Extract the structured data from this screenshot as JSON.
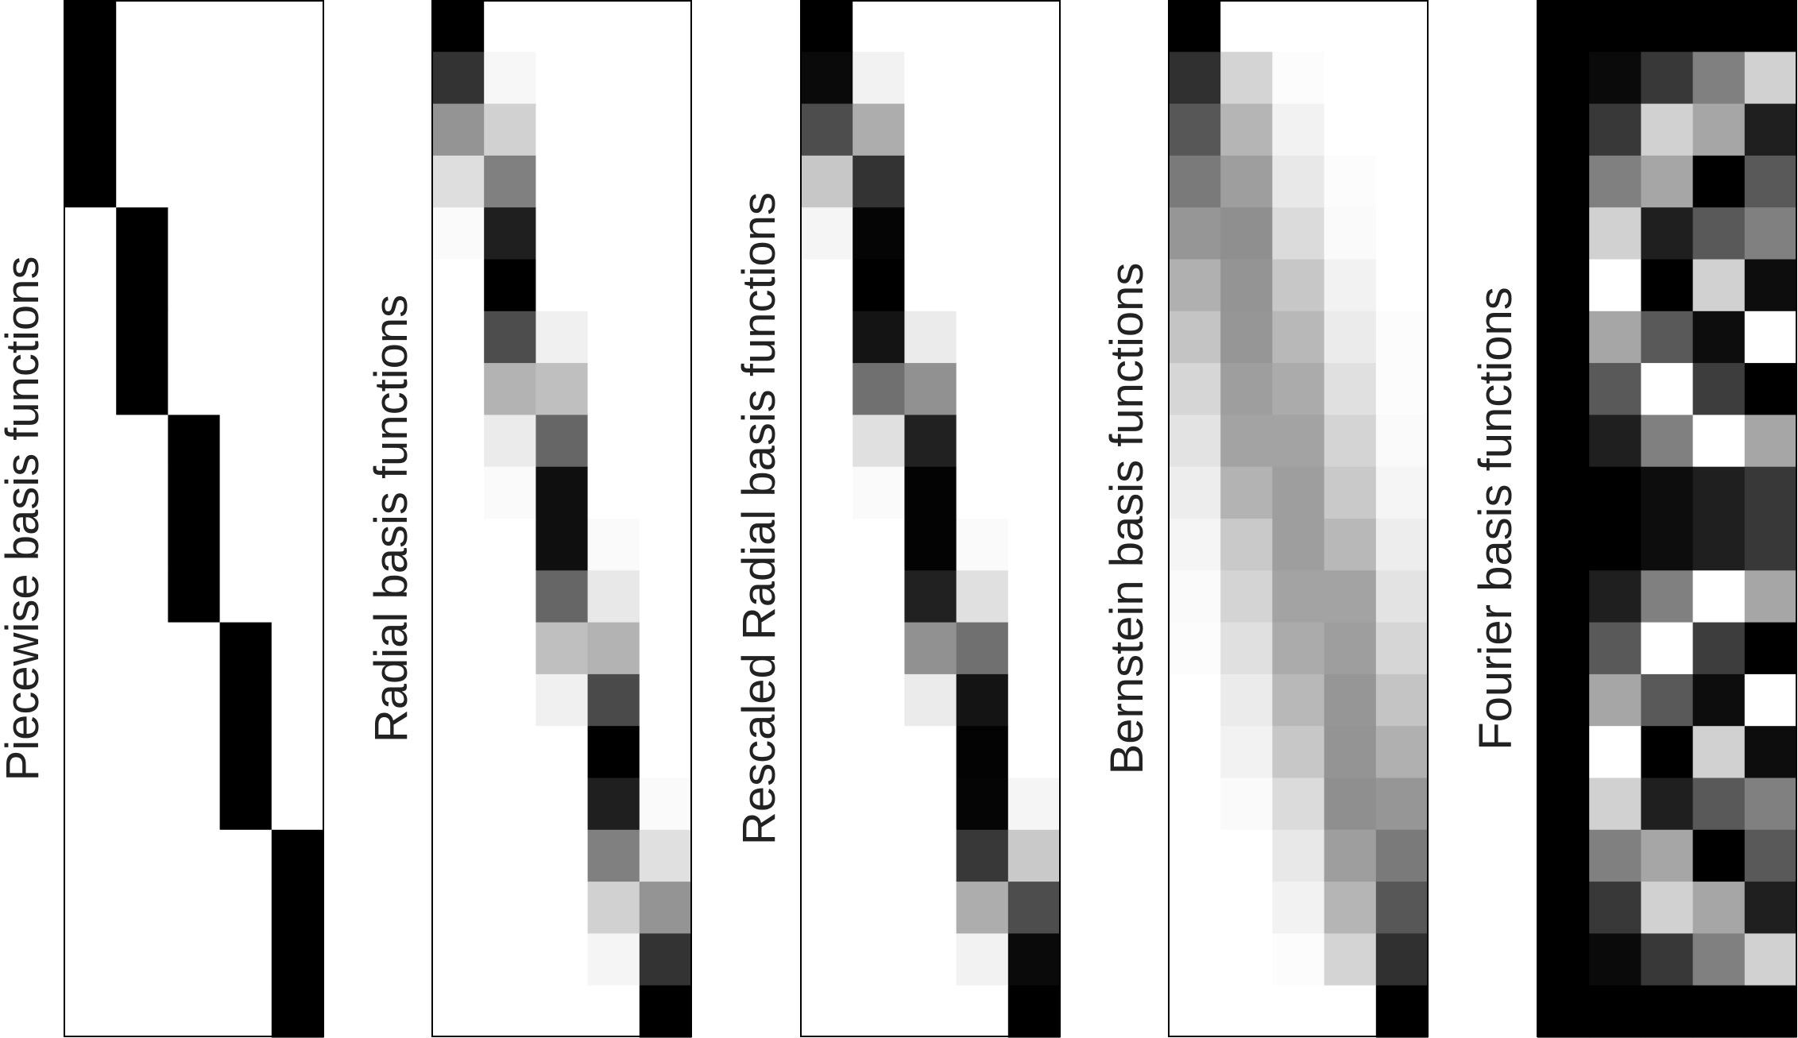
{
  "chart_data": [
    {
      "type": "heatmap",
      "title": "Piecewise basis functions",
      "colormap": "white-to-black",
      "value_range": [
        0,
        1
      ],
      "columns": 5,
      "rows": 20,
      "values": [
        [
          1,
          0,
          0,
          0,
          0
        ],
        [
          1,
          0,
          0,
          0,
          0
        ],
        [
          1,
          0,
          0,
          0,
          0
        ],
        [
          1,
          0,
          0,
          0,
          0
        ],
        [
          0,
          1,
          0,
          0,
          0
        ],
        [
          0,
          1,
          0,
          0,
          0
        ],
        [
          0,
          1,
          0,
          0,
          0
        ],
        [
          0,
          1,
          0,
          0,
          0
        ],
        [
          0,
          0,
          1,
          0,
          0
        ],
        [
          0,
          0,
          1,
          0,
          0
        ],
        [
          0,
          0,
          1,
          0,
          0
        ],
        [
          0,
          0,
          1,
          0,
          0
        ],
        [
          0,
          0,
          0,
          1,
          0
        ],
        [
          0,
          0,
          0,
          1,
          0
        ],
        [
          0,
          0,
          0,
          1,
          0
        ],
        [
          0,
          0,
          0,
          1,
          0
        ],
        [
          0,
          0,
          0,
          0,
          1
        ],
        [
          0,
          0,
          0,
          0,
          1
        ],
        [
          0,
          0,
          0,
          0,
          1
        ],
        [
          0,
          0,
          0,
          0,
          1
        ]
      ]
    },
    {
      "type": "heatmap",
      "title": "Radial basis functions",
      "colormap": "white-to-black",
      "value_range": [
        0,
        1
      ],
      "columns": 5,
      "rows": 20,
      "values": [
        [
          1,
          0,
          0,
          0,
          0
        ],
        [
          0.8,
          0.03,
          0,
          0,
          0
        ],
        [
          0.42,
          0.18,
          0,
          0,
          0
        ],
        [
          0.13,
          0.5,
          0,
          0,
          0
        ],
        [
          0.02,
          0.88,
          0,
          0,
          0
        ],
        [
          0,
          1,
          0,
          0,
          0
        ],
        [
          0,
          0.7,
          0.06,
          0,
          0
        ],
        [
          0,
          0.3,
          0.25,
          0,
          0
        ],
        [
          0,
          0.08,
          0.6,
          0,
          0
        ],
        [
          0,
          0.02,
          0.94,
          0,
          0
        ],
        [
          0,
          0,
          0.94,
          0.02,
          0
        ],
        [
          0,
          0,
          0.6,
          0.09,
          0
        ],
        [
          0,
          0,
          0.25,
          0.3,
          0
        ],
        [
          0,
          0,
          0.06,
          0.71,
          0
        ],
        [
          0,
          0,
          0,
          1,
          0
        ],
        [
          0,
          0,
          0,
          0.88,
          0.02
        ],
        [
          0,
          0,
          0,
          0.5,
          0.12
        ],
        [
          0,
          0,
          0,
          0.18,
          0.42
        ],
        [
          0,
          0,
          0,
          0.04,
          0.8
        ],
        [
          0,
          0,
          0,
          0,
          1
        ]
      ]
    },
    {
      "type": "heatmap",
      "title": "Rescaled Radial basis functions",
      "colormap": "white-to-black",
      "value_range": [
        0,
        1
      ],
      "columns": 5,
      "rows": 20,
      "values": [
        [
          1,
          0,
          0,
          0,
          0
        ],
        [
          0.96,
          0.05,
          0,
          0,
          0
        ],
        [
          0.7,
          0.32,
          0,
          0,
          0
        ],
        [
          0.22,
          0.8,
          0,
          0,
          0
        ],
        [
          0.04,
          0.98,
          0,
          0,
          0
        ],
        [
          0,
          1,
          0,
          0,
          0
        ],
        [
          0,
          0.92,
          0.08,
          0,
          0
        ],
        [
          0,
          0.56,
          0.43,
          0,
          0
        ],
        [
          0,
          0.12,
          0.87,
          0,
          0
        ],
        [
          0,
          0.02,
          0.99,
          0,
          0
        ],
        [
          0,
          0,
          0.99,
          0.02,
          0
        ],
        [
          0,
          0,
          0.87,
          0.12,
          0
        ],
        [
          0,
          0,
          0.43,
          0.56,
          0
        ],
        [
          0,
          0,
          0.08,
          0.92,
          0
        ],
        [
          0,
          0,
          0,
          0.99,
          0
        ],
        [
          0,
          0,
          0,
          0.98,
          0.04
        ],
        [
          0,
          0,
          0,
          0.78,
          0.21
        ],
        [
          0,
          0,
          0,
          0.32,
          0.7
        ],
        [
          0,
          0,
          0,
          0.05,
          0.96
        ],
        [
          0,
          0,
          0,
          0,
          1
        ]
      ]
    },
    {
      "type": "heatmap",
      "title": "Bernstein basis functions",
      "colormap": "white-to-black",
      "value_range": [
        0,
        1
      ],
      "columns": 5,
      "rows": 20,
      "values": [
        [
          1,
          0,
          0,
          0,
          0
        ],
        [
          0.81,
          0.17,
          0.01,
          0,
          0
        ],
        [
          0.66,
          0.29,
          0.05,
          0,
          0
        ],
        [
          0.52,
          0.38,
          0.09,
          0.01,
          0
        ],
        [
          0.41,
          0.44,
          0.14,
          0.02,
          0
        ],
        [
          0.31,
          0.42,
          0.22,
          0.05,
          0
        ],
        [
          0.23,
          0.41,
          0.28,
          0.08,
          0.01
        ],
        [
          0.16,
          0.38,
          0.33,
          0.12,
          0.01
        ],
        [
          0.11,
          0.36,
          0.36,
          0.17,
          0.02
        ],
        [
          0.07,
          0.3,
          0.38,
          0.21,
          0.04
        ],
        [
          0.04,
          0.21,
          0.38,
          0.28,
          0.07
        ],
        [
          0.02,
          0.17,
          0.36,
          0.36,
          0.11
        ],
        [
          0.01,
          0.12,
          0.33,
          0.38,
          0.16
        ],
        [
          0,
          0.08,
          0.28,
          0.41,
          0.23
        ],
        [
          0,
          0.05,
          0.22,
          0.42,
          0.31
        ],
        [
          0,
          0.02,
          0.14,
          0.44,
          0.41
        ],
        [
          0,
          0,
          0.09,
          0.38,
          0.52
        ],
        [
          0,
          0,
          0.05,
          0.29,
          0.66
        ],
        [
          0,
          0,
          0.01,
          0.17,
          0.81
        ],
        [
          0,
          0,
          0,
          0,
          1
        ]
      ]
    },
    {
      "type": "heatmap",
      "title": "Fourier basis functions",
      "colormap": "white-to-black",
      "value_range": [
        0,
        1
      ],
      "columns": 5,
      "rows": 20,
      "values": [
        [
          1,
          1,
          1,
          1,
          1
        ],
        [
          1,
          0.96,
          0.78,
          0.5,
          0.18
        ],
        [
          1,
          0.78,
          0.18,
          0.35,
          0.88
        ],
        [
          1,
          0.5,
          0.35,
          1,
          0.65
        ],
        [
          1,
          0.18,
          0.88,
          0.65,
          0.5
        ],
        [
          1,
          0,
          1,
          0.18,
          0.95
        ],
        [
          1,
          0.35,
          0.65,
          0.95,
          0
        ],
        [
          1,
          0.65,
          0,
          0.76,
          1
        ],
        [
          1,
          0.88,
          0.5,
          0,
          0.35
        ],
        [
          1,
          1,
          0.95,
          0.88,
          0.78
        ],
        [
          1,
          1,
          0.95,
          0.88,
          0.78
        ],
        [
          1,
          0.88,
          0.5,
          0,
          0.35
        ],
        [
          1,
          0.65,
          0,
          0.76,
          1
        ],
        [
          1,
          0.35,
          0.65,
          0.95,
          0
        ],
        [
          1,
          0,
          1,
          0.18,
          0.95
        ],
        [
          1,
          0.18,
          0.88,
          0.65,
          0.5
        ],
        [
          1,
          0.5,
          0.35,
          1,
          0.65
        ],
        [
          1,
          0.78,
          0.18,
          0.35,
          0.88
        ],
        [
          1,
          0.96,
          0.78,
          0.5,
          0.18
        ],
        [
          1,
          1,
          1,
          1,
          1
        ]
      ]
    }
  ]
}
